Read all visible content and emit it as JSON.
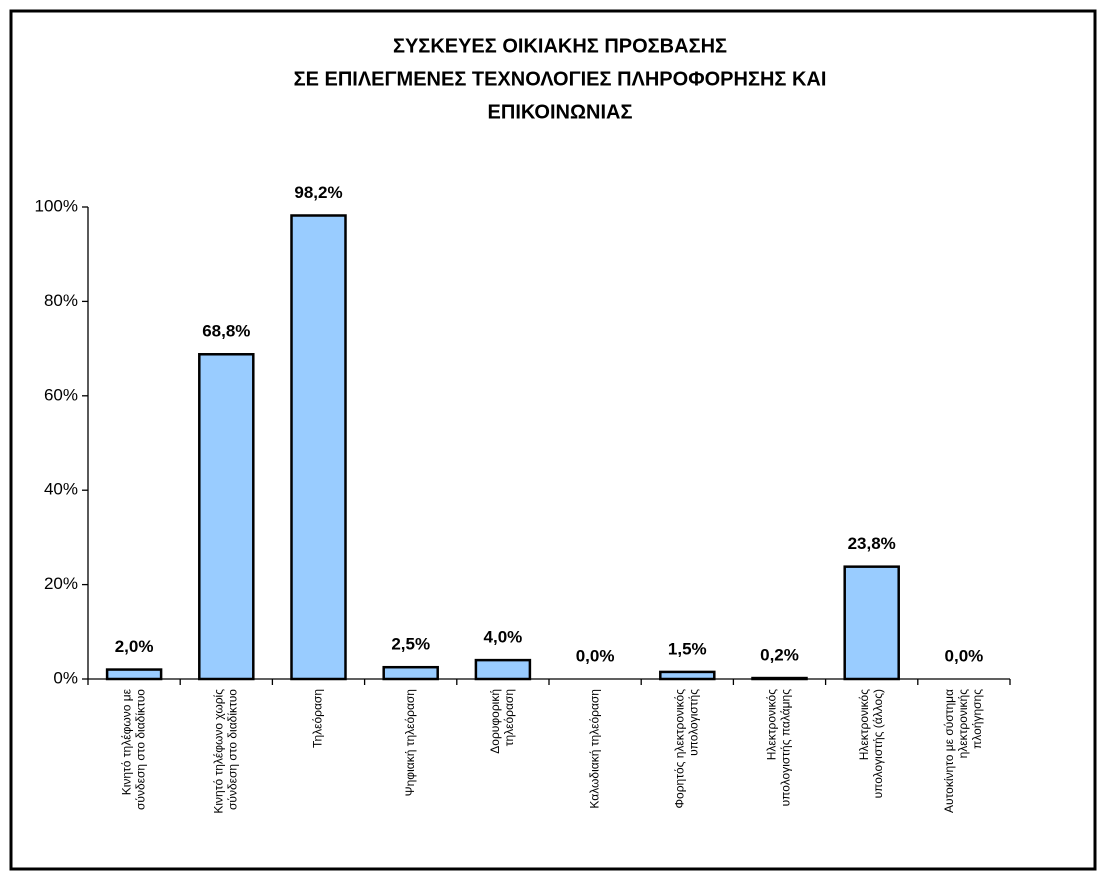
{
  "chart_data": {
    "type": "bar",
    "title": [
      "ΣΥΣΚΕΥΕΣ ΟΙΚΙΑΚΗΣ ΠΡΟΣΒΑΣΗΣ",
      "ΣΕ ΕΠΙΛΕΓΜΕΝΕΣ ΤΕΧΝΟΛΟΓΙΕΣ ΠΛΗΡΟΦΟΡΗΣΗΣ ΚΑΙ",
      "ΕΠΙΚΟΙΝΩΝΙΑΣ"
    ],
    "categories": [
      [
        "Κινητό τηλέφωνο με",
        "σύνδεση στο διαδίκτυο"
      ],
      [
        "Κινητό τηλέφωνο χωρίς",
        "σύνδεση στο διαδίκτυο"
      ],
      [
        "Τηλεόραση"
      ],
      [
        "Ψηφιακή τηλεόραση"
      ],
      [
        "Δορυφορική",
        "τηλεόραση"
      ],
      [
        "Καλωδιακή τηλεόραση"
      ],
      [
        "Φορητός ηλεκτρονικός",
        "υπολογιστής"
      ],
      [
        "Ηλεκτρονικός",
        "υπολογιστής παλάμης"
      ],
      [
        "Ηλεκτρονικός",
        "υπολογιστής (άλλος)"
      ],
      [
        "Αυτοκίνητο με σύστημα",
        "ηλεκτρονικής",
        "πλοήγησης"
      ]
    ],
    "values": [
      2.0,
      68.8,
      98.2,
      2.5,
      4.0,
      0.0,
      1.5,
      0.2,
      23.8,
      0.0
    ],
    "value_labels": [
      "2,0%",
      "68,8%",
      "98,2%",
      "2,5%",
      "4,0%",
      "0,0%",
      "1,5%",
      "0,2%",
      "23,8%",
      "0,0%"
    ],
    "color": "#99ccff",
    "ylim": [
      0,
      100
    ],
    "yticks": [
      {
        "value": 0,
        "label": "0%"
      },
      {
        "value": 20,
        "label": "20%"
      },
      {
        "value": 40,
        "label": "40%"
      },
      {
        "value": 60,
        "label": "60%"
      },
      {
        "value": 80,
        "label": "80%"
      },
      {
        "value": 100,
        "label": "100%"
      }
    ],
    "grid": false
  }
}
